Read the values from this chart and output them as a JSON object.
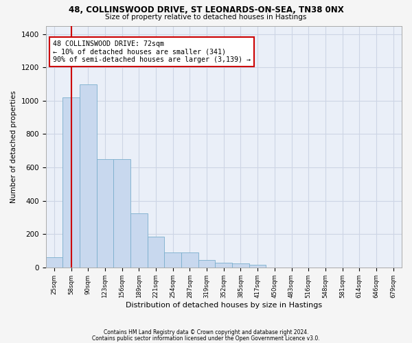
{
  "title": "48, COLLINSWOOD DRIVE, ST LEONARDS-ON-SEA, TN38 0NX",
  "subtitle": "Size of property relative to detached houses in Hastings",
  "xlabel": "Distribution of detached houses by size in Hastings",
  "ylabel": "Number of detached properties",
  "bar_color": "#c8d8ee",
  "bar_edge_color": "#7aaecc",
  "bar_heights": [
    62,
    1020,
    1100,
    650,
    650,
    325,
    185,
    90,
    90,
    45,
    28,
    25,
    15,
    0,
    0,
    0,
    0,
    0,
    0,
    0,
    0
  ],
  "categories": [
    "25sqm",
    "58sqm",
    "90sqm",
    "123sqm",
    "156sqm",
    "189sqm",
    "221sqm",
    "254sqm",
    "287sqm",
    "319sqm",
    "352sqm",
    "385sqm",
    "417sqm",
    "450sqm",
    "483sqm",
    "516sqm",
    "548sqm",
    "581sqm",
    "614sqm",
    "646sqm",
    "679sqm"
  ],
  "ylim": [
    0,
    1450
  ],
  "yticks": [
    0,
    200,
    400,
    600,
    800,
    1000,
    1200,
    1400
  ],
  "annotation_text": "48 COLLINSWOOD DRIVE: 72sqm\n← 10% of detached houses are smaller (341)\n90% of semi-detached houses are larger (3,139) →",
  "annotation_box_color": "#ffffff",
  "annotation_box_edge": "#cc0000",
  "vline_color": "#cc0000",
  "vline_x_bar_index": 1.5,
  "grid_color": "#cdd5e5",
  "background_color": "#eaeff8",
  "fig_background": "#f5f5f5",
  "footer_line1": "Contains HM Land Registry data © Crown copyright and database right 2024.",
  "footer_line2": "Contains public sector information licensed under the Open Government Licence v3.0."
}
